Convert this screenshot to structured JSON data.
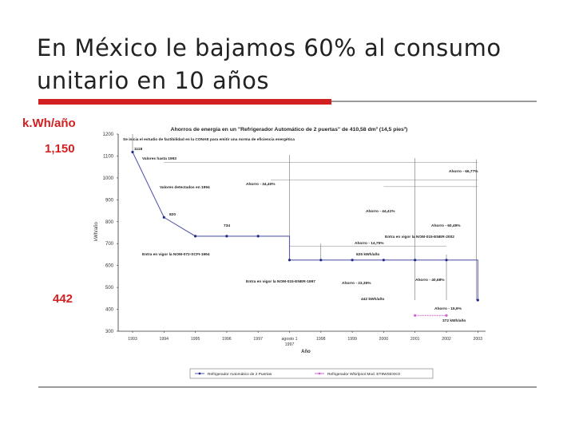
{
  "slide": {
    "title": "En México le bajamos 60% al consumo unitario en 10 años",
    "side_unit": "k.Wh/año",
    "side_value_high": "1,150",
    "side_value_low": "442"
  },
  "chart_data": {
    "type": "line",
    "title": "Ahorros de energía en un \"Refrigerador Automático de 2 puertas\" de 410,58 dm³ (14,5 pies³)",
    "xlabel": "Año",
    "ylabel": "kWh/año",
    "ylim": [
      300,
      1200
    ],
    "y_ticks": [
      300,
      400,
      500,
      600,
      700,
      800,
      900,
      1000,
      1100,
      1200
    ],
    "x_ticks": [
      "1993",
      "1994",
      "1995",
      "1996",
      "1997",
      "agosto 1 1997",
      "1998",
      "1999",
      "2000",
      "2001",
      "2002",
      "2003"
    ],
    "grid": false,
    "legend": "bottom",
    "series": [
      {
        "name": "Refrigerador Automático de 2 Puertas",
        "color": "#5a5cae",
        "x": [
          0,
          1,
          2,
          3,
          4,
          5,
          6,
          7,
          8,
          9,
          10,
          11
        ],
        "values": [
          1118,
          820,
          734,
          734,
          734,
          625,
          625,
          625,
          625,
          625,
          625,
          442
        ]
      },
      {
        "name": "Refrigerador Whirlpool Mod. ET9WSEXKO",
        "color": "#cc66cc",
        "x": [
          9,
          10
        ],
        "values": [
          372,
          372
        ]
      }
    ],
    "annotations": [
      "Se inicia el estudio de factibilidad en la CONAE para emitir una norma de eficiencia energética",
      "1118",
      "Valores hasta 1993",
      "Valores detectados en 1994",
      "820",
      "734",
      "Entra en vigor la NOM-072-SCFI-1994",
      "Ahorro - 34,40%",
      "Ahorro - 14,75%",
      "625 kWh/año",
      "Entra en vigor la NOM-015-ENER-1997",
      "Ahorro - 23,35%",
      "Ahorro - 44,41%",
      "Ahorro - 60,49%",
      "Entra en vigor la NOM-015-ENER-2002",
      "Ahorro - 66,77%",
      "Ahorro - 40,68%",
      "442 kWh/año",
      "Ahorro - 15,9%",
      "372 kWh/año"
    ]
  }
}
